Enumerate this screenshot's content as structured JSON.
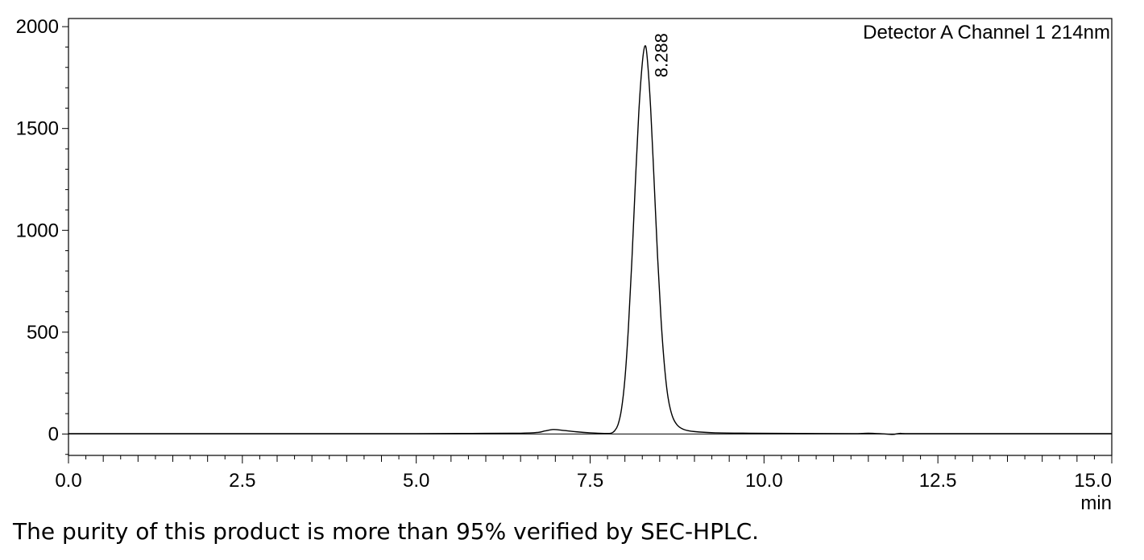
{
  "chart_data": {
    "type": "line",
    "legend": "Detector A Channel 1 214nm",
    "xlabel": "min",
    "ylabel": "",
    "xlim": [
      0,
      15
    ],
    "ylim": [
      -105,
      2040
    ],
    "x_ticks": [
      0,
      2.5,
      5,
      7.5,
      10,
      12.5,
      15
    ],
    "x_tick_labels": [
      "0.0",
      "2.5",
      "5.0",
      "7.5",
      "10.0",
      "12.5",
      "15.0"
    ],
    "y_ticks": [
      0,
      500,
      1000,
      1500,
      2000
    ],
    "y_tick_labels": [
      "0",
      "500",
      "1000",
      "1500",
      "2000"
    ],
    "grid": false,
    "legend_position": "top-right",
    "peaks": [
      {
        "retention_time": 8.288,
        "height": 1905,
        "label": "8.288"
      }
    ],
    "series": [
      {
        "points": [
          [
            0.0,
            2
          ],
          [
            5.0,
            2
          ],
          [
            5.8,
            3
          ],
          [
            6.5,
            4
          ],
          [
            6.75,
            8
          ],
          [
            6.85,
            15
          ],
          [
            6.97,
            22
          ],
          [
            7.1,
            18
          ],
          [
            7.3,
            11
          ],
          [
            7.5,
            6
          ],
          [
            7.7,
            3
          ],
          [
            7.8,
            4
          ],
          [
            7.85,
            15
          ],
          [
            7.9,
            45
          ],
          [
            7.95,
            120
          ],
          [
            8.0,
            270
          ],
          [
            8.05,
            520
          ],
          [
            8.1,
            850
          ],
          [
            8.15,
            1230
          ],
          [
            8.2,
            1580
          ],
          [
            8.25,
            1820
          ],
          [
            8.288,
            1905
          ],
          [
            8.32,
            1850
          ],
          [
            8.37,
            1600
          ],
          [
            8.42,
            1240
          ],
          [
            8.47,
            870
          ],
          [
            8.52,
            560
          ],
          [
            8.57,
            330
          ],
          [
            8.62,
            180
          ],
          [
            8.68,
            90
          ],
          [
            8.75,
            45
          ],
          [
            8.85,
            22
          ],
          [
            9.0,
            12
          ],
          [
            9.3,
            6
          ],
          [
            9.8,
            4
          ],
          [
            10.5,
            3
          ],
          [
            11.3,
            2
          ],
          [
            11.5,
            4
          ],
          [
            11.7,
            1
          ],
          [
            11.85,
            -2
          ],
          [
            11.95,
            3
          ],
          [
            12.1,
            2
          ],
          [
            13.0,
            2
          ],
          [
            15.0,
            2
          ]
        ]
      }
    ]
  },
  "caption": "The purity of this product is more than 95% verified by SEC-HPLC."
}
